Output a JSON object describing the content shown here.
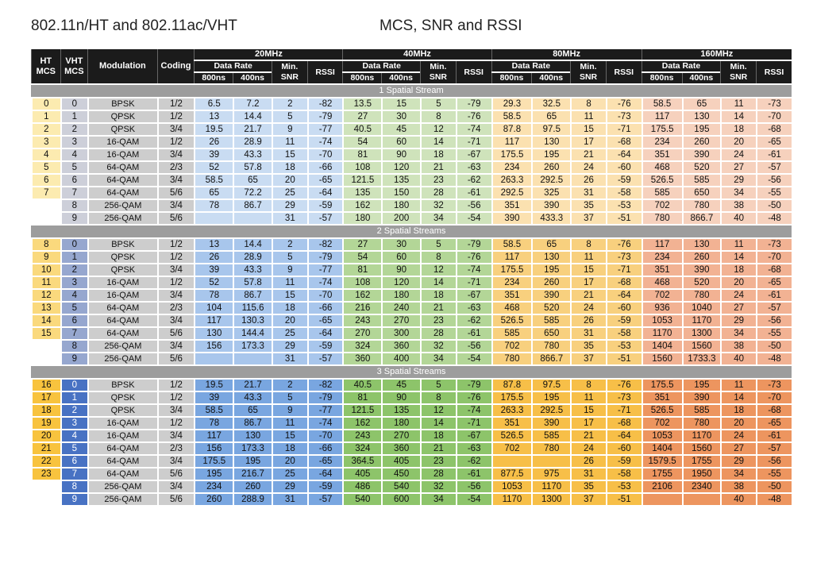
{
  "title_left": "802.11n/HT and 802.11ac/VHT",
  "title_right": "MCS, SNR and RSSI",
  "headers": {
    "ht": "HT MCS",
    "vht": "VHT MCS",
    "modulation": "Modulation",
    "coding": "Coding",
    "bw": [
      "20MHz",
      "40MHz",
      "80MHz",
      "160MHz"
    ],
    "data_rate": "Data Rate",
    "min_snr": "Min. SNR",
    "rssi": "RSSI",
    "gi_800": "800ns",
    "gi_400": "400ns"
  },
  "sections": [
    {
      "label": "1 Spatial Stream",
      "rows": [
        [
          "0",
          "0",
          "BPSK",
          "1/2",
          "6.5",
          "7.2",
          "2",
          "-82",
          "13.5",
          "15",
          "5",
          "-79",
          "29.3",
          "32.5",
          "8",
          "-76",
          "58.5",
          "65",
          "11",
          "-73"
        ],
        [
          "1",
          "1",
          "QPSK",
          "1/2",
          "13",
          "14.4",
          "5",
          "-79",
          "27",
          "30",
          "8",
          "-76",
          "58.5",
          "65",
          "11",
          "-73",
          "117",
          "130",
          "14",
          "-70"
        ],
        [
          "2",
          "2",
          "QPSK",
          "3/4",
          "19.5",
          "21.7",
          "9",
          "-77",
          "40.5",
          "45",
          "12",
          "-74",
          "87.8",
          "97.5",
          "15",
          "-71",
          "175.5",
          "195",
          "18",
          "-68"
        ],
        [
          "3",
          "3",
          "16-QAM",
          "1/2",
          "26",
          "28.9",
          "11",
          "-74",
          "54",
          "60",
          "14",
          "-71",
          "117",
          "130",
          "17",
          "-68",
          "234",
          "260",
          "20",
          "-65"
        ],
        [
          "4",
          "4",
          "16-QAM",
          "3/4",
          "39",
          "43.3",
          "15",
          "-70",
          "81",
          "90",
          "18",
          "-67",
          "175.5",
          "195",
          "21",
          "-64",
          "351",
          "390",
          "24",
          "-61"
        ],
        [
          "5",
          "5",
          "64-QAM",
          "2/3",
          "52",
          "57.8",
          "18",
          "-66",
          "108",
          "120",
          "21",
          "-63",
          "234",
          "260",
          "24",
          "-60",
          "468",
          "520",
          "27",
          "-57"
        ],
        [
          "6",
          "6",
          "64-QAM",
          "3/4",
          "58.5",
          "65",
          "20",
          "-65",
          "121.5",
          "135",
          "23",
          "-62",
          "263.3",
          "292.5",
          "26",
          "-59",
          "526.5",
          "585",
          "29",
          "-56"
        ],
        [
          "7",
          "7",
          "64-QAM",
          "5/6",
          "65",
          "72.2",
          "25",
          "-64",
          "135",
          "150",
          "28",
          "-61",
          "292.5",
          "325",
          "31",
          "-58",
          "585",
          "650",
          "34",
          "-55"
        ],
        [
          "",
          "8",
          "256-QAM",
          "3/4",
          "78",
          "86.7",
          "29",
          "-59",
          "162",
          "180",
          "32",
          "-56",
          "351",
          "390",
          "35",
          "-53",
          "702",
          "780",
          "38",
          "-50"
        ],
        [
          "",
          "9",
          "256-QAM",
          "5/6",
          "",
          "",
          "31",
          "-57",
          "180",
          "200",
          "34",
          "-54",
          "390",
          "433.3",
          "37",
          "-51",
          "780",
          "866.7",
          "40",
          "-48"
        ]
      ]
    },
    {
      "label": "2 Spatial Streams",
      "rows": [
        [
          "8",
          "0",
          "BPSK",
          "1/2",
          "13",
          "14.4",
          "2",
          "-82",
          "27",
          "30",
          "5",
          "-79",
          "58.5",
          "65",
          "8",
          "-76",
          "117",
          "130",
          "11",
          "-73"
        ],
        [
          "9",
          "1",
          "QPSK",
          "1/2",
          "26",
          "28.9",
          "5",
          "-79",
          "54",
          "60",
          "8",
          "-76",
          "117",
          "130",
          "11",
          "-73",
          "234",
          "260",
          "14",
          "-70"
        ],
        [
          "10",
          "2",
          "QPSK",
          "3/4",
          "39",
          "43.3",
          "9",
          "-77",
          "81",
          "90",
          "12",
          "-74",
          "175.5",
          "195",
          "15",
          "-71",
          "351",
          "390",
          "18",
          "-68"
        ],
        [
          "11",
          "3",
          "16-QAM",
          "1/2",
          "52",
          "57.8",
          "11",
          "-74",
          "108",
          "120",
          "14",
          "-71",
          "234",
          "260",
          "17",
          "-68",
          "468",
          "520",
          "20",
          "-65"
        ],
        [
          "12",
          "4",
          "16-QAM",
          "3/4",
          "78",
          "86.7",
          "15",
          "-70",
          "162",
          "180",
          "18",
          "-67",
          "351",
          "390",
          "21",
          "-64",
          "702",
          "780",
          "24",
          "-61"
        ],
        [
          "13",
          "5",
          "64-QAM",
          "2/3",
          "104",
          "115.6",
          "18",
          "-66",
          "216",
          "240",
          "21",
          "-63",
          "468",
          "520",
          "24",
          "-60",
          "936",
          "1040",
          "27",
          "-57"
        ],
        [
          "14",
          "6",
          "64-QAM",
          "3/4",
          "117",
          "130.3",
          "20",
          "-65",
          "243",
          "270",
          "23",
          "-62",
          "526.5",
          "585",
          "26",
          "-59",
          "1053",
          "1170",
          "29",
          "-56"
        ],
        [
          "15",
          "7",
          "64-QAM",
          "5/6",
          "130",
          "144.4",
          "25",
          "-64",
          "270",
          "300",
          "28",
          "-61",
          "585",
          "650",
          "31",
          "-58",
          "1170",
          "1300",
          "34",
          "-55"
        ],
        [
          "",
          "8",
          "256-QAM",
          "3/4",
          "156",
          "173.3",
          "29",
          "-59",
          "324",
          "360",
          "32",
          "-56",
          "702",
          "780",
          "35",
          "-53",
          "1404",
          "1560",
          "38",
          "-50"
        ],
        [
          "",
          "9",
          "256-QAM",
          "5/6",
          "",
          "",
          "31",
          "-57",
          "360",
          "400",
          "34",
          "-54",
          "780",
          "866.7",
          "37",
          "-51",
          "1560",
          "1733.3",
          "40",
          "-48"
        ]
      ]
    },
    {
      "label": "3 Spatial Streams",
      "rows": [
        [
          "16",
          "0",
          "BPSK",
          "1/2",
          "19.5",
          "21.7",
          "2",
          "-82",
          "40.5",
          "45",
          "5",
          "-79",
          "87.8",
          "97.5",
          "8",
          "-76",
          "175.5",
          "195",
          "11",
          "-73"
        ],
        [
          "17",
          "1",
          "QPSK",
          "1/2",
          "39",
          "43.3",
          "5",
          "-79",
          "81",
          "90",
          "8",
          "-76",
          "175.5",
          "195",
          "11",
          "-73",
          "351",
          "390",
          "14",
          "-70"
        ],
        [
          "18",
          "2",
          "QPSK",
          "3/4",
          "58.5",
          "65",
          "9",
          "-77",
          "121.5",
          "135",
          "12",
          "-74",
          "263.3",
          "292.5",
          "15",
          "-71",
          "526.5",
          "585",
          "18",
          "-68"
        ],
        [
          "19",
          "3",
          "16-QAM",
          "1/2",
          "78",
          "86.7",
          "11",
          "-74",
          "162",
          "180",
          "14",
          "-71",
          "351",
          "390",
          "17",
          "-68",
          "702",
          "780",
          "20",
          "-65"
        ],
        [
          "20",
          "4",
          "16-QAM",
          "3/4",
          "117",
          "130",
          "15",
          "-70",
          "243",
          "270",
          "18",
          "-67",
          "526.5",
          "585",
          "21",
          "-64",
          "1053",
          "1170",
          "24",
          "-61"
        ],
        [
          "21",
          "5",
          "64-QAM",
          "2/3",
          "156",
          "173.3",
          "18",
          "-66",
          "324",
          "360",
          "21",
          "-63",
          "702",
          "780",
          "24",
          "-60",
          "1404",
          "1560",
          "27",
          "-57"
        ],
        [
          "22",
          "6",
          "64-QAM",
          "3/4",
          "175.5",
          "195",
          "20",
          "-65",
          "364.5",
          "405",
          "23",
          "-62",
          "",
          "",
          "26",
          "-59",
          "1579.5",
          "1755",
          "29",
          "-56"
        ],
        [
          "23",
          "7",
          "64-QAM",
          "5/6",
          "195",
          "216.7",
          "25",
          "-64",
          "405",
          "450",
          "28",
          "-61",
          "877.5",
          "975",
          "31",
          "-58",
          "1755",
          "1950",
          "34",
          "-55"
        ],
        [
          "",
          "8",
          "256-QAM",
          "3/4",
          "234",
          "260",
          "29",
          "-59",
          "486",
          "540",
          "32",
          "-56",
          "1053",
          "1170",
          "35",
          "-53",
          "2106",
          "2340",
          "38",
          "-50"
        ],
        [
          "",
          "9",
          "256-QAM",
          "5/6",
          "260",
          "288.9",
          "31",
          "-57",
          "540",
          "600",
          "34",
          "-54",
          "1170",
          "1300",
          "37",
          "-51",
          "",
          "",
          "40",
          "-48"
        ]
      ]
    }
  ]
}
